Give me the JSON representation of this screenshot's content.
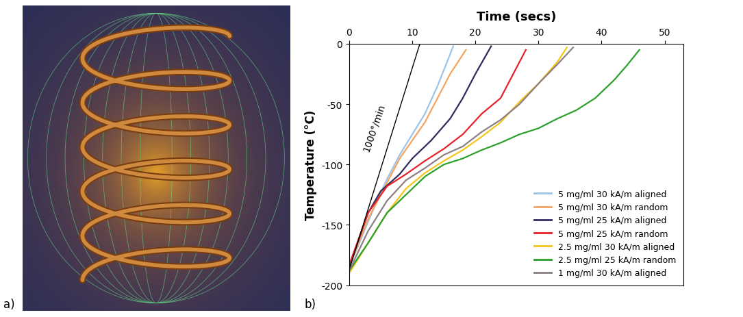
{
  "panel_labels": [
    "a)",
    "b)"
  ],
  "chart_data": {
    "type": "line",
    "x_label": "Time (secs)",
    "y_label": "Temperature (°C)",
    "xlim": [
      0,
      53
    ],
    "xticks": [
      0,
      10,
      20,
      30,
      40,
      50
    ],
    "ylim": [
      -200,
      0
    ],
    "yticks": [
      -200,
      -150,
      -100,
      -50,
      0
    ],
    "grid": false,
    "legend": "lower right",
    "annotations": [
      {
        "text": "1000°/min",
        "x": [
          0,
          11.2
        ],
        "values": [
          -187,
          0
        ],
        "color": "#000000"
      }
    ],
    "series": [
      {
        "name": "5 mg/ml 30 kA/m aligned",
        "color": "#9dc3e6",
        "x": [
          0,
          2,
          4,
          6,
          8,
          10,
          12,
          14,
          16.5
        ],
        "values": [
          -185,
          -160,
          -135,
          -112,
          -92,
          -75,
          -58,
          -35,
          -2
        ]
      },
      {
        "name": "5 mg/ml 30 kA/m random",
        "color": "#f4a460",
        "x": [
          0,
          3,
          6,
          8,
          10,
          12,
          14,
          16,
          18.5
        ],
        "values": [
          -185,
          -145,
          -115,
          -95,
          -80,
          -65,
          -45,
          -25,
          -5
        ]
      },
      {
        "name": "5 mg/ml 25 kA/m aligned",
        "color": "#2e2a5c",
        "x": [
          0,
          3,
          5,
          8,
          10,
          13,
          16,
          18,
          20,
          22.5
        ],
        "values": [
          -185,
          -140,
          -122,
          -108,
          -95,
          -80,
          -62,
          -45,
          -25,
          -2
        ]
      },
      {
        "name": "5 mg/ml 25 kA/m random",
        "color": "#e8202a",
        "x": [
          0,
          3,
          6,
          9,
          12,
          15,
          18,
          21,
          24,
          26,
          28
        ],
        "values": [
          -183,
          -140,
          -118,
          -108,
          -97,
          -87,
          -75,
          -58,
          -45,
          -25,
          -5
        ]
      },
      {
        "name": "2.5 mg/ml 30 kA/m aligned",
        "color": "#f5c518",
        "x": [
          0,
          3,
          6,
          9,
          12,
          15,
          18,
          21,
          24,
          27,
          30,
          33,
          34.5
        ],
        "values": [
          -190,
          -165,
          -140,
          -120,
          -107,
          -97,
          -88,
          -77,
          -65,
          -48,
          -33,
          -15,
          -3
        ]
      },
      {
        "name": "2.5 mg/ml 25 kA/m random",
        "color": "#2ca02c",
        "x": [
          0,
          3,
          6,
          9,
          12,
          15,
          18,
          21,
          24,
          27,
          30,
          33,
          36,
          39,
          42,
          44,
          46
        ],
        "values": [
          -188,
          -165,
          -140,
          -125,
          -110,
          -100,
          -95,
          -88,
          -82,
          -75,
          -70,
          -62,
          -55,
          -45,
          -30,
          -18,
          -5
        ]
      },
      {
        "name": "1 mg/ml 30 kA/m aligned",
        "color": "#8c7f86",
        "x": [
          0,
          3,
          6,
          9,
          12,
          15,
          18,
          21,
          24,
          27,
          30,
          33,
          35.5
        ],
        "values": [
          -188,
          -155,
          -130,
          -113,
          -103,
          -92,
          -85,
          -73,
          -63,
          -50,
          -33,
          -17,
          -3
        ]
      }
    ]
  }
}
